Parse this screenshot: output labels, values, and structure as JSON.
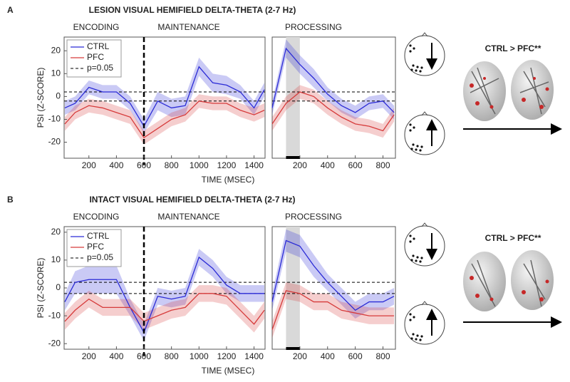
{
  "chart_data": [
    {
      "type": "line",
      "panel_label": "A",
      "title": "LESION VISUAL HEMIFIELD DELTA-THETA (2-7 Hz)",
      "ylabel": "PSI (Z-SCORE)",
      "xlabel": "TIME (MSEC)",
      "sections": [
        "ENCODING",
        "MAINTENANCE"
      ],
      "annotation": "CTRL > PFC**",
      "legend": "upper left",
      "x": [
        25,
        100,
        200,
        300,
        400,
        500,
        600,
        700,
        800,
        900,
        1000,
        1100,
        1200,
        1300,
        1400,
        1475
      ],
      "series": [
        {
          "name": "CTRL",
          "color": "#2b2bd6",
          "values": [
            -5,
            -3,
            4,
            2,
            2,
            -3,
            -13,
            -2,
            -5,
            -4,
            13,
            6,
            5,
            2,
            -5,
            3
          ],
          "error": [
            3,
            3,
            3,
            3,
            3,
            3,
            3,
            4,
            4,
            4,
            4,
            4,
            4,
            3,
            3,
            3
          ]
        },
        {
          "name": "PFC",
          "color": "#d63b3b",
          "values": [
            -12,
            -7,
            -4,
            -5,
            -7,
            -9,
            -18,
            -14,
            -10,
            -8,
            -2,
            -3,
            -3,
            -6,
            -8,
            -6
          ],
          "error": [
            3,
            3,
            3,
            3,
            3,
            3,
            3,
            3,
            3,
            3,
            3,
            3,
            3,
            3,
            3,
            3
          ]
        }
      ],
      "threshold": {
        "name": "p=0.05",
        "values": [
          2,
          -2
        ]
      },
      "vline": 600,
      "xlim": [
        20,
        1480
      ],
      "xticks": [
        200,
        400,
        600,
        800,
        1000,
        1200,
        1400
      ],
      "ylim": [
        -27,
        26
      ],
      "yticks": [
        -20,
        -10,
        0,
        10,
        20
      ]
    },
    {
      "type": "line",
      "sections": [
        "PROCESSING"
      ],
      "x": [
        0,
        100,
        200,
        300,
        400,
        500,
        600,
        700,
        800,
        880
      ],
      "series": [
        {
          "name": "CTRL",
          "color": "#2b2bd6",
          "values": [
            -5,
            21,
            14,
            8,
            1,
            -4,
            -7,
            -3,
            -2,
            -7
          ],
          "error": [
            3,
            4,
            4,
            4,
            3,
            3,
            3,
            3,
            3,
            3
          ]
        },
        {
          "name": "PFC",
          "color": "#d63b3b",
          "values": [
            -12,
            -3,
            2,
            0,
            -5,
            -9,
            -12,
            -13,
            -15,
            -8
          ],
          "error": [
            3,
            3,
            3,
            3,
            3,
            3,
            3,
            3,
            3,
            3
          ]
        }
      ],
      "threshold": {
        "name": "p=0.05",
        "values": [
          2,
          -2
        ]
      },
      "shade": [
        100,
        200
      ],
      "xlim": [
        0,
        890
      ],
      "xticks": [
        200,
        400,
        600,
        800
      ],
      "ylim": [
        -27,
        26
      ]
    },
    {
      "type": "line",
      "panel_label": "B",
      "title": "INTACT VISUAL HEMIFIELD DELTA-THETA (2-7 Hz)",
      "ylabel": "PSI (Z-SCORE)",
      "xlabel": "TIME (MSEC)",
      "sections": [
        "ENCODING",
        "MAINTENANCE"
      ],
      "annotation": "CTRL > PFC**",
      "legend": "upper left",
      "x": [
        25,
        100,
        200,
        300,
        400,
        500,
        600,
        700,
        800,
        900,
        1000,
        1100,
        1200,
        1300,
        1400,
        1475
      ],
      "series": [
        {
          "name": "CTRL",
          "color": "#2b2bd6",
          "values": [
            -5,
            2,
            3,
            3,
            3,
            -7,
            -16,
            -3,
            -4,
            -3,
            11,
            7,
            1,
            -2,
            -2,
            -2
          ],
          "error": [
            3,
            4,
            5,
            5,
            5,
            3,
            3,
            3,
            3,
            3,
            3,
            3,
            3,
            3,
            3,
            3
          ]
        },
        {
          "name": "PFC",
          "color": "#d63b3b",
          "values": [
            -12,
            -8,
            -4,
            -7,
            -7,
            -7,
            -12,
            -10,
            -8,
            -7,
            -2,
            -2,
            -3,
            -8,
            -13,
            -8
          ],
          "error": [
            3,
            3,
            3,
            3,
            3,
            3,
            3,
            3,
            3,
            3,
            3,
            3,
            3,
            3,
            3,
            3
          ]
        }
      ],
      "threshold": {
        "name": "p=0.05",
        "values": [
          2,
          -2
        ]
      },
      "vline": 600,
      "xlim": [
        20,
        1480
      ],
      "xticks": [
        200,
        400,
        600,
        800,
        1000,
        1200,
        1400
      ],
      "ylim": [
        -22,
        22
      ],
      "yticks": [
        -20,
        -10,
        0,
        10,
        20
      ]
    },
    {
      "type": "line",
      "sections": [
        "PROCESSING"
      ],
      "x": [
        0,
        100,
        200,
        300,
        400,
        500,
        600,
        700,
        800,
        880
      ],
      "series": [
        {
          "name": "CTRL",
          "color": "#2b2bd6",
          "values": [
            -5,
            17,
            15,
            8,
            2,
            -3,
            -8,
            -5,
            -5,
            -3
          ],
          "error": [
            3,
            4,
            4,
            4,
            3,
            3,
            3,
            3,
            3,
            3
          ]
        },
        {
          "name": "PFC",
          "color": "#d63b3b",
          "values": [
            -15,
            -1,
            -2,
            -5,
            -5,
            -8,
            -9,
            -10,
            -10,
            -10
          ],
          "error": [
            3,
            3,
            3,
            3,
            3,
            3,
            3,
            3,
            3,
            3
          ]
        }
      ],
      "threshold": {
        "name": "p=0.05",
        "values": [
          2,
          -2
        ]
      },
      "shade": [
        100,
        200
      ],
      "xlim": [
        0,
        890
      ],
      "xticks": [
        200,
        400,
        600,
        800
      ],
      "ylim": [
        -22,
        22
      ]
    }
  ]
}
